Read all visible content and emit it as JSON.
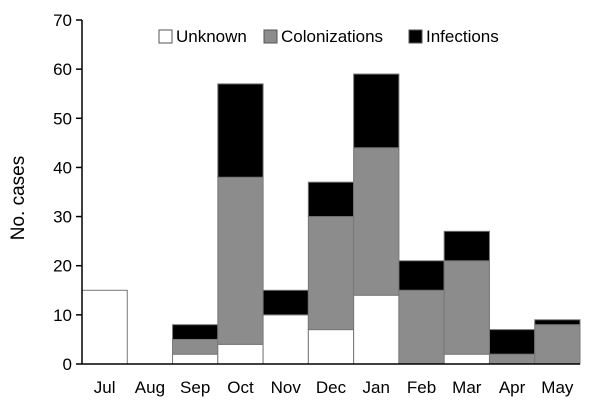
{
  "chart_data": {
    "type": "bar",
    "stacked": true,
    "categories": [
      "Jul",
      "Aug",
      "Sep",
      "Oct",
      "Nov",
      "Dec",
      "Jan",
      "Feb",
      "Mar",
      "Apr",
      "May"
    ],
    "series": [
      {
        "name": "Unknown",
        "color": "#ffffff",
        "values": [
          15,
          0,
          2,
          4,
          10,
          7,
          14,
          0,
          2,
          0,
          0
        ]
      },
      {
        "name": "Colonizations",
        "color": "#8c8c8c",
        "values": [
          0,
          0,
          3,
          34,
          0,
          23,
          30,
          15,
          19,
          2,
          8
        ]
      },
      {
        "name": "Infections",
        "color": "#000000",
        "values": [
          0,
          0,
          3,
          19,
          5,
          7,
          15,
          6,
          6,
          5,
          1
        ]
      }
    ],
    "ylabel": "No. cases",
    "ylim": [
      0,
      70
    ],
    "yticks": [
      0,
      10,
      20,
      30,
      40,
      50,
      60,
      70
    ],
    "grid": false,
    "legend_position": "top"
  }
}
